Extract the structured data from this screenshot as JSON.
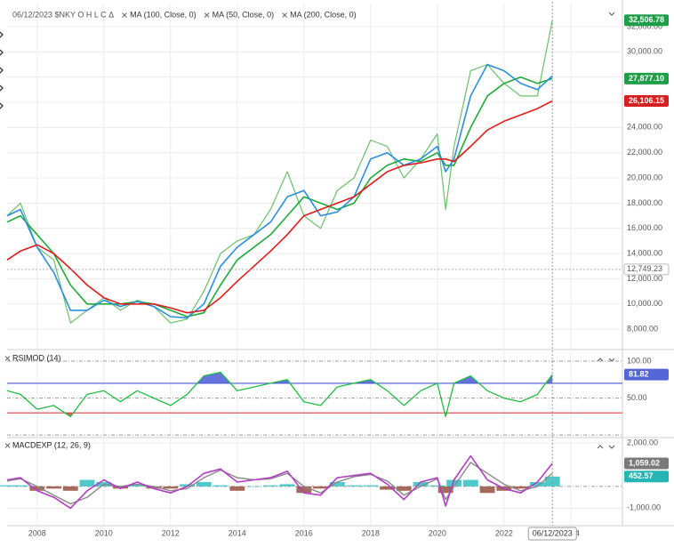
{
  "chart_data": [
    {
      "type": "line",
      "title": "06/12/2023 $NKY O H L C Δ",
      "xlim": [
        2007.1,
        2025.55
      ],
      "xticks": [
        2008,
        2010,
        2012,
        2014,
        2016,
        2018,
        2020,
        2022,
        2024
      ],
      "ylim": [
        6600,
        33550
      ],
      "yticks": [
        {
          "value": 8000,
          "label": "8,000.00"
        },
        {
          "value": 10000,
          "label": "10,000.00"
        },
        {
          "value": 12000,
          "label": "12,000.00"
        },
        {
          "value": 14000,
          "label": "14,000.00"
        },
        {
          "value": 16000,
          "label": "16,000.00"
        },
        {
          "value": 18000,
          "label": "18,000.00"
        },
        {
          "value": 20000,
          "label": "20,000.00"
        },
        {
          "value": 22000,
          "label": "22,000.00"
        },
        {
          "value": 24000,
          "label": "24,000.00"
        },
        {
          "value": 26000,
          "label": "26,000.00"
        },
        {
          "value": 28000,
          "label": "28,000.00"
        },
        {
          "value": 30000,
          "label": "30,000.00"
        },
        {
          "value": 32000,
          "label": "32,000.00"
        }
      ],
      "grid": "solid",
      "crosshair_y": {
        "value": 12749.23,
        "label": "12,749.23"
      },
      "x": [
        2007.1,
        2007.5,
        2008.0,
        2008.5,
        2009.0,
        2009.5,
        2010.0,
        2010.5,
        2011.0,
        2011.5,
        2012.0,
        2012.5,
        2013.0,
        2013.5,
        2014.0,
        2014.5,
        2015.0,
        2015.5,
        2016.0,
        2016.5,
        2017.0,
        2017.5,
        2018.0,
        2018.5,
        2019.0,
        2019.5,
        2020.0,
        2020.25,
        2020.5,
        2021.0,
        2021.5,
        2022.0,
        2022.5,
        2023.0,
        2023.45
      ],
      "series": [
        {
          "color": "#6cbf6c",
          "width": 1.2,
          "last_label": {
            "text": "32,506.78",
            "color": "#1e9e48"
          },
          "values": [
            17000,
            18000,
            14500,
            13500,
            8500,
            9500,
            10500,
            9500,
            10300,
            9800,
            8500,
            8800,
            11000,
            14000,
            15000,
            15500,
            17500,
            20500,
            17000,
            16000,
            19000,
            20000,
            23000,
            22500,
            20000,
            21500,
            23500,
            17500,
            22500,
            28500,
            29000,
            27500,
            26500,
            26500,
            32506.78
          ]
        },
        {
          "name": "MA (100, Close, 0)",
          "color": "#1faa3a",
          "width": 1.6,
          "last_label": {
            "text": "27,877.10",
            "color": "#1e9e48"
          },
          "values": [
            16500,
            17000,
            15500,
            14000,
            11500,
            10000,
            10000,
            10000,
            10200,
            10000,
            9500,
            9000,
            9300,
            11500,
            13500,
            14500,
            15500,
            17000,
            18500,
            18000,
            17500,
            18000,
            20000,
            21000,
            21500,
            21300,
            22000,
            21000,
            21000,
            24000,
            26500,
            27500,
            28000,
            27500,
            27877.1
          ]
        },
        {
          "name": "MA (50, Close, 0)",
          "color": "#2b8fdc",
          "width": 1.6,
          "values": [
            17000,
            17500,
            14500,
            12500,
            9500,
            9500,
            10300,
            9800,
            10200,
            9800,
            9000,
            8900,
            10000,
            13000,
            14500,
            15500,
            16500,
            18500,
            19000,
            17000,
            17300,
            18500,
            21500,
            22000,
            21000,
            21500,
            22500,
            20500,
            21500,
            26500,
            29000,
            28500,
            27500,
            27000,
            28100
          ]
        },
        {
          "name": "MA (200, Close, 0)",
          "color": "#dd1c1c",
          "width": 1.6,
          "last_label": {
            "text": "26,106.15",
            "color": "#d42020"
          },
          "values": [
            13500,
            14200,
            14700,
            14000,
            12800,
            11500,
            10500,
            10000,
            10000,
            10000,
            9700,
            9300,
            9500,
            10500,
            11800,
            13000,
            14200,
            15500,
            17000,
            17500,
            18000,
            18500,
            19500,
            20500,
            21000,
            21200,
            21500,
            21500,
            21300,
            22500,
            23800,
            24500,
            25000,
            25500,
            26106.15
          ]
        }
      ]
    },
    {
      "type": "line",
      "title": "RSIMOD (14)",
      "xlim": [
        2007.1,
        2025.55
      ],
      "xticks": [
        2008,
        2010,
        2012,
        2014,
        2016,
        2018,
        2020,
        2022,
        2024
      ],
      "ylim": [
        -1,
        112
      ],
      "yticks": [
        {
          "value": 100,
          "label": "100.00"
        },
        {
          "value": 50,
          "label": "50.00"
        }
      ],
      "grid": "dashed",
      "levels": [
        {
          "value": 70,
          "color": "#4a5bd8",
          "fill": "above"
        },
        {
          "value": 30,
          "color": "#e04040",
          "fill": "below"
        }
      ],
      "x": [
        2007.1,
        2007.5,
        2008.0,
        2008.5,
        2009.0,
        2009.5,
        2010.0,
        2010.5,
        2011.0,
        2011.5,
        2012.0,
        2012.5,
        2013.0,
        2013.5,
        2014.0,
        2014.5,
        2015.0,
        2015.5,
        2016.0,
        2016.5,
        2017.0,
        2017.5,
        2018.0,
        2018.5,
        2019.0,
        2019.5,
        2020.0,
        2020.25,
        2020.5,
        2021.0,
        2021.5,
        2022.0,
        2022.5,
        2023.0,
        2023.45
      ],
      "series": [
        {
          "color": "#22bb44",
          "width": 1.3,
          "last_label": {
            "text": "81.82",
            "color": "#5566d6"
          },
          "values": [
            60,
            55,
            35,
            40,
            25,
            55,
            60,
            45,
            60,
            50,
            40,
            55,
            80,
            85,
            60,
            65,
            70,
            75,
            45,
            40,
            65,
            70,
            75,
            60,
            40,
            60,
            70,
            25,
            70,
            80,
            60,
            50,
            45,
            55,
            81.82
          ]
        }
      ]
    },
    {
      "type": "line",
      "title": "MACDEXP (12, 26, 9)",
      "xlim": [
        2007.1,
        2025.55
      ],
      "xticks": [
        2008,
        2010,
        2012,
        2014,
        2016,
        2018,
        2020,
        2022,
        2024
      ],
      "ylim": [
        -1720,
        2160
      ],
      "yticks": [
        {
          "value": 2000,
          "label": "2,000.00"
        },
        {
          "value": -1000,
          "label": "-1,000.00"
        }
      ],
      "grid": "solid",
      "crosshair_x": {
        "value": 2023.45,
        "label": "06/12/2023"
      },
      "x": [
        2007.1,
        2007.5,
        2008.0,
        2008.5,
        2009.0,
        2009.5,
        2010.0,
        2010.5,
        2011.0,
        2011.5,
        2012.0,
        2012.5,
        2013.0,
        2013.5,
        2014.0,
        2014.5,
        2015.0,
        2015.5,
        2016.0,
        2016.5,
        2017.0,
        2017.5,
        2018.0,
        2018.5,
        2019.0,
        2019.5,
        2020.0,
        2020.25,
        2020.5,
        2021.0,
        2021.5,
        2022.0,
        2022.5,
        2023.0,
        2023.45
      ],
      "series": [
        {
          "type": "bar",
          "color": "#3cc4c4",
          "negative_color": "#9c5a4a",
          "last_label": {
            "text": "452.57",
            "color": "#26b5b5"
          },
          "values": [
            50,
            50,
            -200,
            -100,
            -200,
            300,
            200,
            -100,
            100,
            -100,
            -100,
            100,
            200,
            50,
            -200,
            0,
            50,
            100,
            -300,
            -100,
            200,
            50,
            50,
            -150,
            -200,
            200,
            50,
            -300,
            300,
            300,
            -300,
            -200,
            -100,
            200,
            452.57
          ]
        },
        {
          "color": "#888888",
          "width": 1.4,
          "values": [
            250,
            350,
            0,
            -400,
            -800,
            -500,
            100,
            0,
            100,
            0,
            -200,
            -100,
            400,
            750,
            400,
            300,
            350,
            600,
            0,
            -300,
            200,
            450,
            550,
            250,
            -400,
            0,
            350,
            -600,
            0,
            1100,
            600,
            100,
            -200,
            0,
            606.45
          ]
        },
        {
          "color": "#b040c0",
          "width": 1.6,
          "last_label": {
            "text": "1,059.02",
            "color": "#7a7a7a"
          },
          "values": [
            300,
            400,
            -200,
            -500,
            -1000,
            -200,
            300,
            -100,
            200,
            -100,
            -300,
            0,
            600,
            800,
            200,
            300,
            400,
            700,
            -300,
            -400,
            400,
            500,
            600,
            100,
            -600,
            200,
            400,
            -900,
            300,
            1400,
            300,
            -100,
            -300,
            200,
            1059.02
          ]
        }
      ]
    }
  ]
}
